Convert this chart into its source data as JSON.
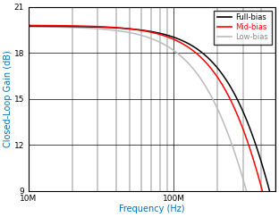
{
  "title": "",
  "xlabel": "Frequency (Hz)",
  "ylabel": "Closed-Loop Gain (dB)",
  "xlim": [
    10000000.0,
    500000000.0
  ],
  "ylim": [
    9,
    21
  ],
  "yticks": [
    9,
    12,
    15,
    18,
    21
  ],
  "freq_start": 10000000.0,
  "freq_end": 500000000.0,
  "legend": [
    "Full-bias",
    "Mid-bias",
    "Low-bias"
  ],
  "line_colors": [
    "#000000",
    "#ff0000",
    "#bbbbbb"
  ],
  "bg_color": "#ffffff",
  "grid_color": "#000000",
  "label_color": "#0070c0",
  "full_bias_params": {
    "flat": 19.75,
    "f3db": 450000000.0,
    "order": 3.5
  },
  "mid_bias_params": {
    "flat": 19.8,
    "f3db": 400000000.0,
    "order": 3.5
  },
  "low_bias_params": {
    "flat": 19.72,
    "f3db": 280000000.0,
    "order": 3.0
  }
}
